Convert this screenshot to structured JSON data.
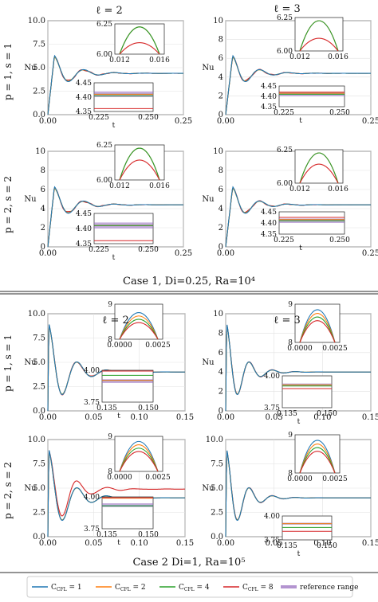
{
  "column_titles": [
    "ℓ = 2",
    "ℓ = 3"
  ],
  "row_labels": [
    "p = 1, s = 1",
    "p = 2, s = 2",
    "p = 1, s = 1",
    "p = 2, s = 2"
  ],
  "case_labels": [
    "Case 1, Di=0.25, Ra=10⁴",
    "Case 2 Di=1, Ra=10⁵"
  ],
  "legend": [
    {
      "label": "C_CFL = 1",
      "color": "#1f77b4"
    },
    {
      "label": "C_CFL = 2",
      "color": "#ff7f0e"
    },
    {
      "label": "C_CFL = 4",
      "color": "#2ca02c"
    },
    {
      "label": "C_CFL = 8",
      "color": "#d62728"
    },
    {
      "label": "reference range",
      "color": "#9467bd"
    }
  ],
  "legend_text": {
    "c": "C",
    "sub": "CFL",
    "eq1": " = 1",
    "eq2": " = 2",
    "eq4": " = 4",
    "eq8": " = 8",
    "ref": "reference range"
  },
  "chart_data": [
    {
      "type": "line",
      "panel": "case1-p1s1-l2",
      "ylabel": "Nu",
      "xlabel": "t",
      "xlim": [
        0,
        0.25
      ],
      "ylim": [
        0,
        10
      ],
      "xticks": [
        "0.00",
        "0.25"
      ],
      "yticks": [
        "0.0",
        "2.5",
        "5.0",
        "7.5",
        "10.0"
      ],
      "curve": {
        "peak_t": 0.012,
        "peak": 6.3,
        "final": 4.4,
        "decay": 0.035
      },
      "series": [
        {
          "name": "C_CFL = 1"
        },
        {
          "name": "C_CFL = 2"
        },
        {
          "name": "C_CFL = 4"
        },
        {
          "name": "C_CFL = 8"
        }
      ],
      "inset_top": {
        "xticks": [
          "0.012",
          "0.016"
        ],
        "yticks": [
          "6.00",
          "6.25"
        ],
        "values": [
          6.28,
          6.27,
          6.25,
          6.1
        ]
      },
      "inset_bottom": {
        "xticks": [
          "0.225",
          "0.250"
        ],
        "yticks": [
          "4.35",
          "4.40",
          "4.45"
        ],
        "values": [
          4.41,
          4.41,
          4.405,
          4.36
        ],
        "reference": [
          4.4,
          4.42
        ]
      }
    },
    {
      "type": "line",
      "panel": "case1-p1s1-l3",
      "ylabel": "Nu",
      "xlabel": "t",
      "xlim": [
        0,
        0.25
      ],
      "ylim": [
        0,
        10
      ],
      "xticks": [
        "0.00",
        "0.25"
      ],
      "yticks": [
        "0",
        "2",
        "4",
        "6",
        "8",
        "10"
      ],
      "curve": {
        "peak_t": 0.012,
        "peak": 6.3,
        "final": 4.4,
        "decay": 0.03
      },
      "series": [
        {
          "name": "C_CFL = 1"
        },
        {
          "name": "C_CFL = 2"
        },
        {
          "name": "C_CFL = 4"
        },
        {
          "name": "C_CFL = 8"
        }
      ],
      "inset_top": {
        "xticks": [
          "0.012",
          "0.016"
        ],
        "yticks": [
          "6.00",
          "6.25"
        ],
        "values": [
          6.28,
          6.28,
          6.27,
          6.1
        ]
      },
      "inset_bottom": {
        "xticks": [
          "0.225",
          "0.250"
        ],
        "yticks": [
          "4.35",
          "4.40",
          "4.45"
        ],
        "values": [
          4.415,
          4.415,
          4.41,
          4.42
        ],
        "reference": [
          4.4,
          4.42
        ]
      }
    },
    {
      "type": "line",
      "panel": "case1-p2s2-l2",
      "ylabel": "Nu",
      "xlabel": "t",
      "xlim": [
        0,
        0.25
      ],
      "ylim": [
        0,
        10
      ],
      "xticks": [
        "0.00",
        "0.25"
      ],
      "yticks": [
        "0",
        "2",
        "4",
        "6",
        "8",
        "10"
      ],
      "curve": {
        "peak_t": 0.012,
        "peak": 6.3,
        "final": 4.4,
        "decay": 0.035
      },
      "series": [
        {
          "name": "C_CFL = 1"
        },
        {
          "name": "C_CFL = 2"
        },
        {
          "name": "C_CFL = 4"
        },
        {
          "name": "C_CFL = 8"
        }
      ],
      "inset_top": {
        "xticks": [
          "0.012",
          "0.016"
        ],
        "yticks": [
          "6.00",
          "6.25"
        ],
        "values": [
          6.29,
          6.28,
          6.26,
          6.15
        ]
      },
      "inset_bottom": {
        "xticks": [
          "0.225",
          "0.250"
        ],
        "yticks": [
          "4.35",
          "4.40",
          "4.45"
        ],
        "values": [
          4.41,
          4.41,
          4.41,
          4.36
        ],
        "reference": [
          4.4,
          4.42
        ]
      }
    },
    {
      "type": "line",
      "panel": "case1-p2s2-l3",
      "ylabel": "Nu",
      "xlabel": "t",
      "xlim": [
        0,
        0.25
      ],
      "ylim": [
        0,
        10
      ],
      "xticks": [
        "0.00",
        "0.25"
      ],
      "yticks": [
        "0",
        "2",
        "4",
        "6",
        "8",
        "10"
      ],
      "curve": {
        "peak_t": 0.012,
        "peak": 6.3,
        "final": 4.4,
        "decay": 0.03
      },
      "series": [
        {
          "name": "C_CFL = 1"
        },
        {
          "name": "C_CFL = 2"
        },
        {
          "name": "C_CFL = 4"
        },
        {
          "name": "C_CFL = 8"
        }
      ],
      "inset_top": {
        "xticks": [
          "0.012",
          "0.016"
        ],
        "yticks": [
          "6.00",
          "6.25"
        ],
        "values": [
          6.28,
          6.28,
          6.26,
          6.15
        ]
      },
      "inset_bottom": {
        "xticks": [
          "0.225",
          "0.250"
        ],
        "yticks": [
          "4.35",
          "4.40",
          "4.45"
        ],
        "values": [
          4.415,
          4.415,
          4.41,
          4.425
        ],
        "reference": [
          4.4,
          4.42
        ]
      }
    },
    {
      "type": "line",
      "panel": "case2-p1s1-l2",
      "ylabel": "Nu",
      "xlabel": "t",
      "xlim": [
        0,
        0.15
      ],
      "ylim": [
        0,
        10
      ],
      "xticks": [
        "0.00",
        "0.05",
        "0.10",
        "0.15"
      ],
      "yticks": [
        "0.0",
        "2.5",
        "5.0",
        "7.5",
        "10.0"
      ],
      "curve": {
        "peak_t": 0.001,
        "peak": 9.0,
        "final": 4.0,
        "decay": 0.02
      },
      "series": [
        {
          "name": "C_CFL = 1"
        },
        {
          "name": "C_CFL = 2"
        },
        {
          "name": "C_CFL = 4"
        },
        {
          "name": "C_CFL = 8"
        }
      ],
      "inset_top": {
        "xticks": [
          "0.0000",
          "0.0025"
        ],
        "yticks": [
          "8",
          "9"
        ],
        "values": [
          8.8,
          8.7,
          8.6,
          8.5
        ]
      },
      "inset_bottom": {
        "xticks": [
          "0.135",
          "0.150"
        ],
        "yticks": [
          "3.75",
          "4.00"
        ],
        "values": [
          3.92,
          3.92,
          3.96,
          4.3
        ],
        "reference": [
          3.9,
          3.93
        ]
      }
    },
    {
      "type": "line",
      "panel": "case2-p1s1-l3",
      "ylabel": "Nu",
      "xlabel": "t",
      "xlim": [
        0,
        0.15
      ],
      "ylim": [
        0,
        10
      ],
      "xticks": [
        "0.00",
        "0.05",
        "0.10",
        "0.15"
      ],
      "yticks": [
        "0",
        "2",
        "4",
        "6",
        "8",
        "10"
      ],
      "curve": {
        "peak_t": 0.001,
        "peak": 9.0,
        "final": 4.0,
        "decay": 0.015
      },
      "series": [
        {
          "name": "C_CFL = 1"
        },
        {
          "name": "C_CFL = 2"
        },
        {
          "name": "C_CFL = 4"
        },
        {
          "name": "C_CFL = 8"
        }
      ],
      "inset_top": {
        "xticks": [
          "0.0000",
          "0.0025"
        ],
        "yticks": [
          "8",
          "9"
        ],
        "values": [
          8.9,
          8.8,
          8.7,
          8.6
        ]
      },
      "inset_bottom": {
        "xticks": [
          "0.135",
          "0.150"
        ],
        "yticks": [
          "3.75",
          "4.00"
        ],
        "values": [
          3.93,
          3.93,
          3.92,
          3.9
        ],
        "reference": [
          3.92,
          3.94
        ]
      }
    },
    {
      "type": "line",
      "panel": "case2-p2s2-l2",
      "ylabel": "Nu",
      "xlabel": "t",
      "xlim": [
        0,
        0.15
      ],
      "ylim": [
        0,
        10
      ],
      "xticks": [
        "0.00",
        "0.05",
        "0.10",
        "0.15"
      ],
      "yticks": [
        "0.0",
        "2.5",
        "5.0",
        "7.5",
        "10.0"
      ],
      "curve": {
        "peak_t": 0.001,
        "peak": 9.0,
        "final": 4.0,
        "decay": 0.02
      },
      "series": [
        {
          "name": "C_CFL = 1"
        },
        {
          "name": "C_CFL = 2"
        },
        {
          "name": "C_CFL = 4"
        },
        {
          "name": "C_CFL = 8"
        }
      ],
      "inset_top": {
        "xticks": [
          "0.0000",
          "0.0025"
        ],
        "yticks": [
          "8",
          "9"
        ],
        "values": [
          8.9,
          8.8,
          8.7,
          8.6
        ]
      },
      "inset_bottom": {
        "xticks": [
          "0.135",
          "0.150"
        ],
        "yticks": [
          "3.75",
          "4.00"
        ],
        "values": [
          3.93,
          3.99,
          3.93,
          4.9
        ],
        "reference": [
          3.92,
          3.95
        ]
      }
    },
    {
      "type": "line",
      "panel": "case2-p2s2-l3",
      "ylabel": "Nu",
      "xlabel": "t",
      "xlim": [
        0,
        0.15
      ],
      "ylim": [
        0,
        10
      ],
      "xticks": [
        "0.00",
        "0.05",
        "0.10",
        "0.15"
      ],
      "yticks": [
        "0.0",
        "2.5",
        "5.0",
        "7.5",
        "10.0"
      ],
      "curve": {
        "peak_t": 0.001,
        "peak": 9.0,
        "final": 4.0,
        "decay": 0.015
      },
      "series": [
        {
          "name": "C_CFL = 1"
        },
        {
          "name": "C_CFL = 2"
        },
        {
          "name": "C_CFL = 4"
        },
        {
          "name": "C_CFL = 8"
        }
      ],
      "inset_top": {
        "xticks": [
          "0.0000",
          "0.0025"
        ],
        "yticks": [
          "8",
          "9"
        ],
        "values": [
          8.9,
          8.8,
          8.7,
          8.6
        ]
      },
      "inset_bottom": {
        "xticks": [
          "0.135",
          "0.150"
        ],
        "yticks": [
          "3.75",
          "4.00"
        ],
        "values": [
          3.92,
          3.92,
          3.88,
          3.84
        ],
        "reference": [
          3.91,
          3.93
        ]
      }
    }
  ]
}
